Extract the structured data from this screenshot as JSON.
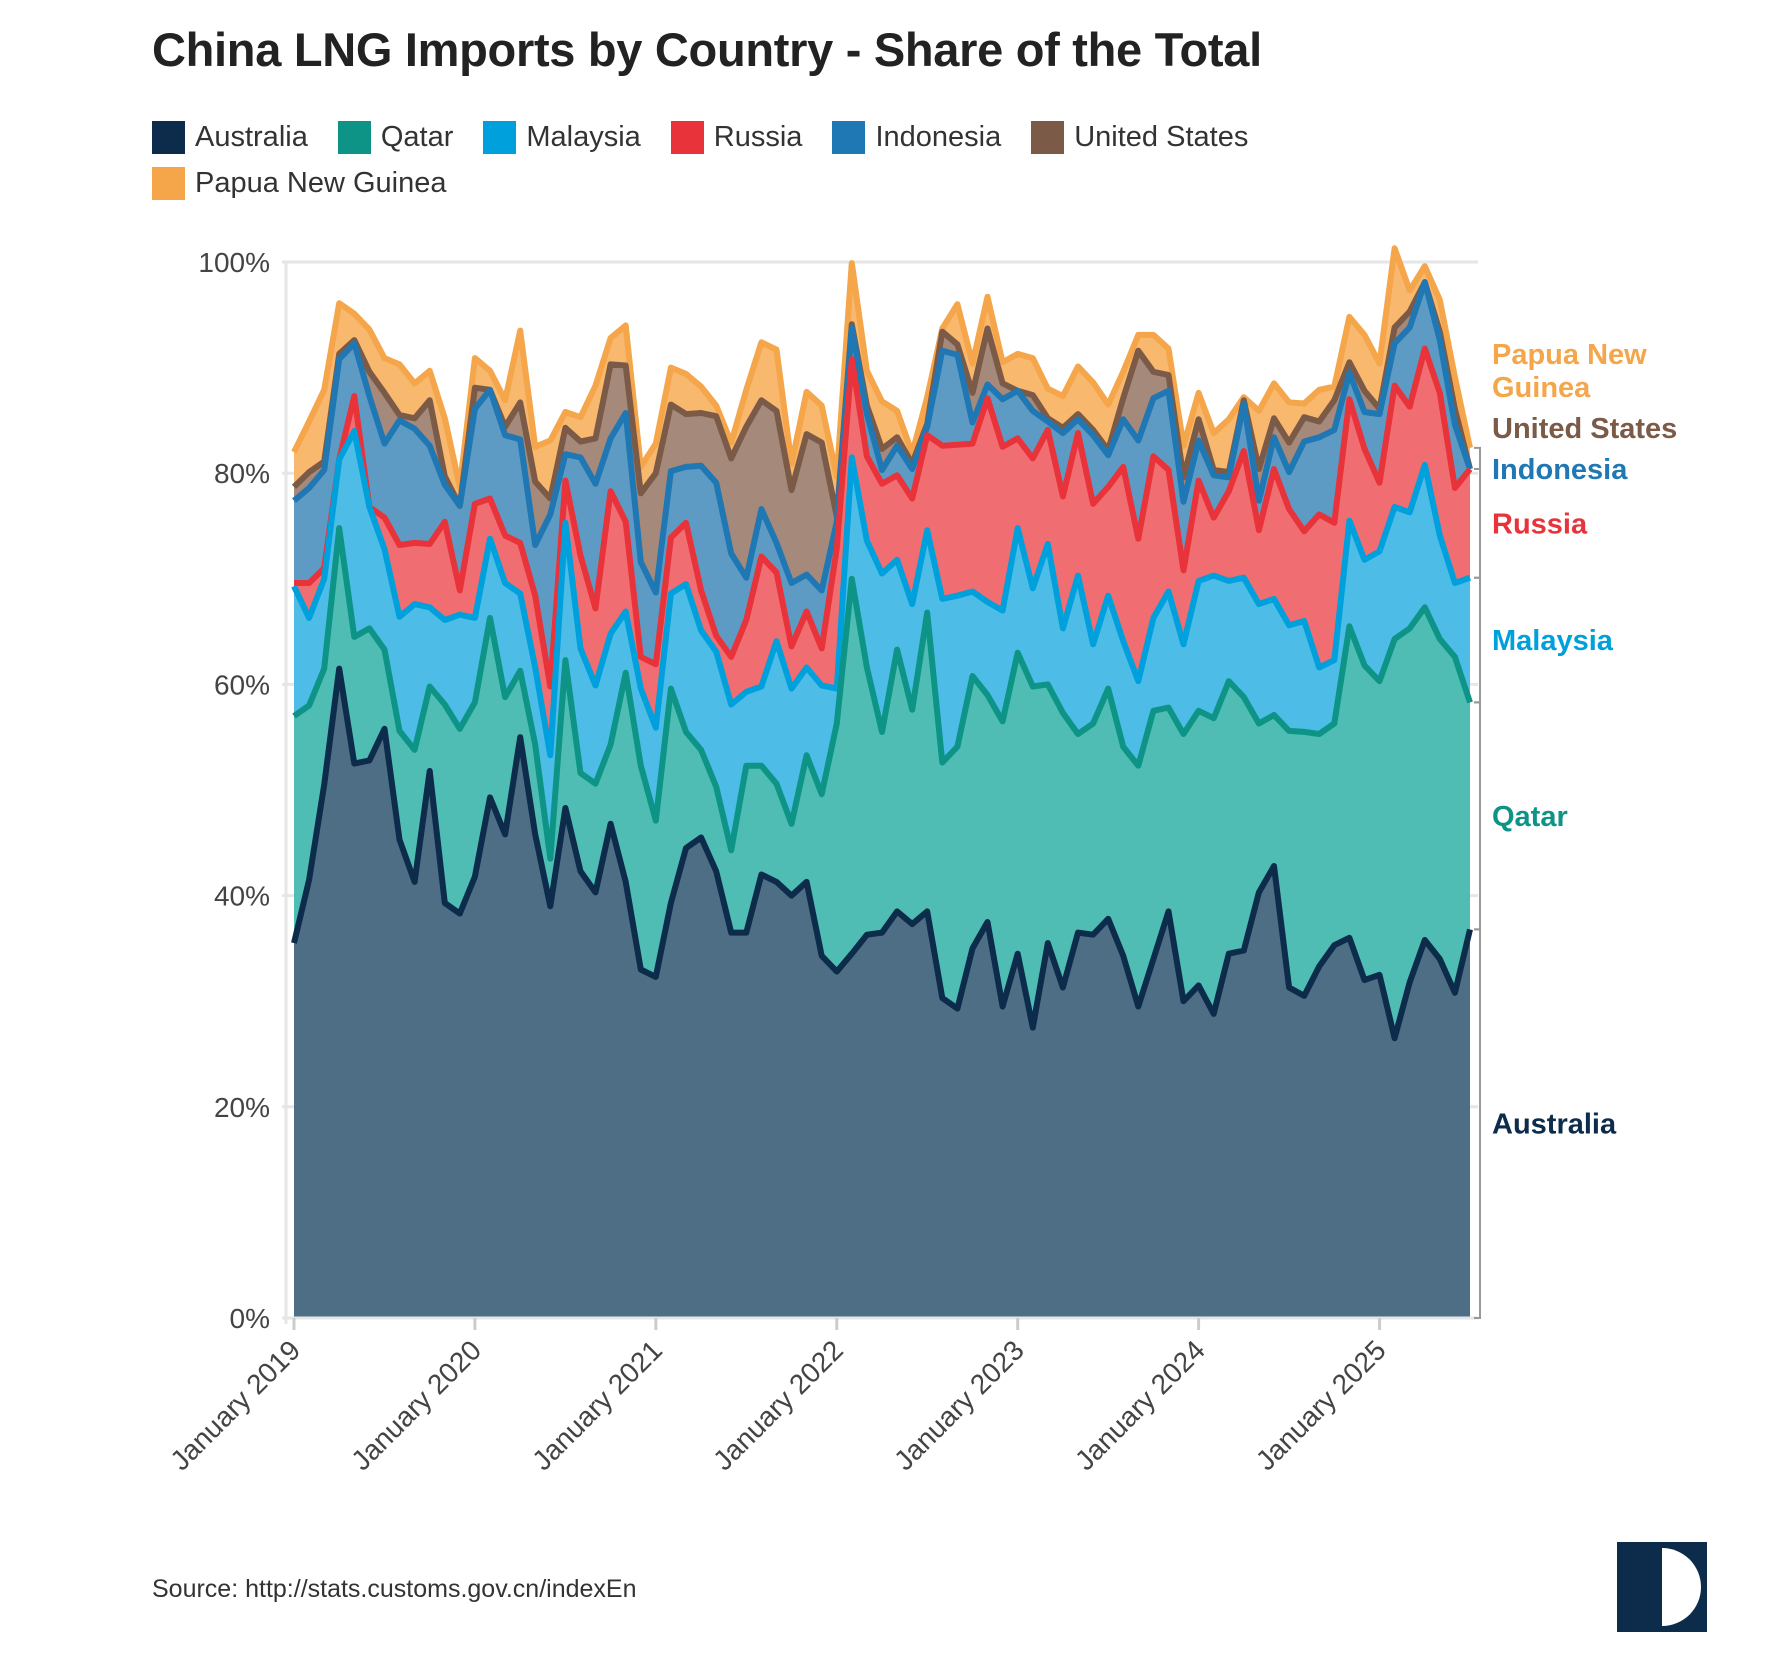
{
  "title": "China LNG Imports by Country - Share of the Total",
  "source": "Source: http://stats.customs.gov.cn/indexEn",
  "logo_icon": "half-circle-logo-icon",
  "chart_data": {
    "type": "area",
    "stacked": true,
    "title": "China LNG Imports by Country - Share of the Total",
    "xlabel": "",
    "ylabel": "",
    "ylim": [
      0,
      100
    ],
    "y_ticks": [
      0,
      20,
      40,
      60,
      80,
      100
    ],
    "y_tick_labels": [
      "0%",
      "20%",
      "40%",
      "60%",
      "80%",
      "100%"
    ],
    "x_tick_labels": [
      "January 2019",
      "January 2020",
      "January 2021",
      "January 2022",
      "January 2023",
      "January 2024",
      "January 2025"
    ],
    "x_start": "2019-01",
    "x_end": "2025-07",
    "frequency": "monthly",
    "grid": true,
    "legend_position": "top",
    "series": [
      {
        "name": "Australia",
        "color": "#0d2b4a",
        "fill": "#4d6e85",
        "end_label": "Australia",
        "values": [
          35.5,
          41.5,
          50.5,
          61.5,
          52.5,
          52.8,
          55.8,
          45.3,
          41.3,
          51.8,
          39.3,
          38.3,
          41.8,
          49.3,
          45.8,
          55.0,
          45.8,
          39.0,
          48.3,
          42.3,
          40.3,
          46.8,
          41.3,
          33.0,
          32.3,
          39.3,
          44.5,
          45.5,
          42.3,
          36.5,
          36.5,
          42.0,
          41.3,
          40.0,
          41.3,
          34.3,
          32.8,
          34.5,
          36.3,
          36.5,
          38.5,
          37.3,
          38.5,
          30.3,
          29.3,
          35.0,
          37.5,
          29.5,
          34.5,
          27.5,
          35.5,
          31.3,
          36.5,
          36.3,
          37.8,
          34.3,
          29.5,
          34.0,
          38.5,
          30.0,
          31.5,
          28.8,
          34.5,
          34.8,
          40.3,
          42.8,
          31.3,
          30.5,
          33.3,
          35.3,
          36.0,
          32.0,
          32.5,
          26.5,
          31.8,
          35.8,
          34.0,
          30.8,
          36.8
        ]
      },
      {
        "name": "Qatar",
        "color": "#0e9486",
        "fill": "#4fbdb3",
        "end_label": "Qatar",
        "values": [
          21.5,
          16.5,
          11.0,
          13.3,
          12.0,
          12.5,
          7.5,
          10.3,
          12.5,
          8.0,
          18.8,
          17.5,
          16.5,
          17.0,
          13.0,
          6.3,
          8.5,
          4.5,
          14.0,
          9.3,
          10.3,
          7.5,
          19.8,
          19.3,
          14.8,
          20.3,
          11.0,
          8.3,
          8.0,
          7.8,
          15.8,
          10.3,
          9.3,
          6.8,
          12.0,
          15.3,
          23.5,
          35.5,
          25.3,
          19.0,
          24.8,
          20.3,
          28.3,
          22.3,
          24.8,
          25.8,
          21.5,
          27.0,
          28.5,
          32.3,
          24.5,
          26.0,
          18.8,
          20.0,
          21.8,
          19.8,
          22.8,
          23.5,
          19.3,
          25.3,
          26.0,
          28.0,
          25.8,
          24.0,
          16.0,
          14.3,
          24.3,
          25.0,
          22.0,
          21.0,
          29.5,
          29.8,
          27.8,
          37.8,
          33.5,
          31.5,
          30.3,
          31.8,
          21.5
        ]
      },
      {
        "name": "Malaysia",
        "color": "#00a0dc",
        "fill": "#4dbde8",
        "end_label": "Malaysia",
        "values": [
          12.3,
          8.3,
          8.5,
          6.5,
          19.5,
          11.5,
          9.5,
          10.8,
          13.8,
          7.5,
          8.0,
          10.8,
          8.0,
          7.5,
          10.8,
          7.3,
          7.3,
          9.8,
          13.0,
          11.8,
          9.3,
          10.5,
          5.8,
          7.3,
          8.8,
          9.0,
          14.0,
          11.3,
          12.8,
          13.8,
          7.0,
          7.5,
          13.5,
          12.8,
          8.3,
          10.3,
          3.3,
          11.5,
          12.0,
          15.0,
          8.5,
          10.0,
          7.8,
          15.5,
          14.3,
          8.0,
          8.8,
          10.5,
          11.8,
          9.3,
          13.3,
          8.0,
          15.0,
          7.5,
          8.8,
          10.0,
          8.0,
          8.8,
          11.0,
          8.5,
          12.3,
          13.5,
          9.5,
          11.3,
          11.3,
          11.0,
          10.0,
          10.5,
          6.3,
          6.0,
          10.0,
          10.0,
          12.3,
          12.5,
          11.0,
          13.5,
          9.8,
          7.0,
          11.8
        ]
      },
      {
        "name": "Russia",
        "color": "#e8333a",
        "fill": "#f06e72",
        "end_label": "Russia",
        "values": [
          0.3,
          3.3,
          1.0,
          0,
          3.3,
          0,
          3.0,
          6.8,
          5.8,
          6.0,
          9.3,
          2.3,
          10.8,
          3.8,
          4.5,
          4.8,
          6.8,
          6.5,
          4.0,
          8.8,
          7.3,
          13.5,
          8.5,
          3.0,
          6.0,
          5.3,
          5.8,
          3.8,
          1.5,
          4.5,
          6.8,
          12.3,
          6.5,
          4.0,
          5.3,
          3.5,
          13.3,
          9.3,
          8.0,
          8.5,
          8.0,
          10.0,
          9.0,
          14.5,
          14.3,
          14.0,
          19.3,
          15.5,
          8.5,
          12.3,
          10.8,
          12.5,
          13.5,
          13.3,
          10.3,
          16.5,
          13.5,
          15.3,
          11.5,
          7.0,
          9.5,
          5.5,
          8.5,
          12.0,
          7.0,
          12.3,
          11.0,
          8.5,
          14.5,
          13.0,
          11.5,
          10.5,
          6.5,
          11.5,
          10.0,
          11.0,
          13.5,
          9.0,
          10.3
        ]
      },
      {
        "name": "Indonesia",
        "color": "#1f77b4",
        "fill": "#5e9bc4",
        "end_label": "Indonesia",
        "values": [
          7.8,
          9.0,
          9.3,
          9.5,
          5.0,
          10.5,
          7.0,
          11.8,
          10.8,
          9.3,
          3.5,
          8.0,
          9.0,
          10.3,
          9.5,
          9.8,
          4.8,
          16.3,
          2.5,
          9.3,
          11.8,
          5.0,
          10.3,
          9.0,
          6.8,
          6.3,
          5.3,
          11.8,
          14.5,
          9.8,
          4.0,
          4.5,
          2.8,
          6.0,
          3.5,
          5.5,
          2.5,
          3.0,
          4.0,
          1.3,
          2.8,
          2.8,
          0.8,
          9.0,
          8.5,
          2.0,
          1.3,
          4.5,
          4.5,
          4.5,
          0.8,
          6.0,
          1.3,
          6.5,
          3.0,
          4.5,
          9.3,
          5.5,
          7.5,
          6.5,
          3.8,
          4.0,
          1.3,
          4.5,
          2.8,
          3.0,
          3.5,
          8.5,
          7.3,
          8.8,
          2.5,
          3.5,
          6.5,
          4.0,
          7.5,
          6.3,
          5.0,
          6.0,
          0.0
        ]
      },
      {
        "name": "United States",
        "color": "#7b5a47",
        "fill": "#a58a7b",
        "end_label": "United States",
        "values": [
          1.3,
          1.5,
          0.8,
          0.5,
          0.3,
          2.3,
          4.8,
          0.5,
          1.0,
          4.3,
          0.8,
          0.0,
          2.0,
          0.0,
          0.8,
          3.5,
          6.0,
          1.5,
          2.5,
          1.5,
          4.3,
          7.0,
          4.5,
          6.5,
          11.3,
          6.3,
          5.0,
          5.0,
          6.3,
          9.0,
          14.3,
          10.3,
          12.5,
          8.8,
          13.3,
          14.0,
          0.5,
          0.3,
          0.8,
          2.0,
          0.8,
          0.5,
          0.3,
          1.8,
          1.0,
          2.8,
          5.3,
          1.5,
          0.0,
          1.5,
          0.3,
          0.5,
          0.5,
          0.5,
          0.5,
          2.0,
          8.5,
          2.5,
          1.5,
          2.3,
          2.0,
          0.5,
          0.5,
          0.3,
          3.0,
          1.8,
          2.8,
          2.3,
          1.5,
          2.8,
          1.0,
          2.0,
          0.5,
          1.5,
          1.5,
          0.0,
          0.8,
          1.5,
          0.0
        ]
      },
      {
        "name": "Papua New Guinea",
        "color": "#f5a54a",
        "fill": "#f8b86e",
        "end_label": "Papua New Guinea",
        "values": [
          3.3,
          4.8,
          6.8,
          4.8,
          2.5,
          4.0,
          3.3,
          4.8,
          3.3,
          2.8,
          5.5,
          1.8,
          2.8,
          1.8,
          2.5,
          6.8,
          3.3,
          5.5,
          1.5,
          2.3,
          5.0,
          2.5,
          3.8,
          2.5,
          2.8,
          3.5,
          3.8,
          2.5,
          1.0,
          1.5,
          3.5,
          5.5,
          5.8,
          2.5,
          4.0,
          3.5,
          3.8,
          5.8,
          3.3,
          4.5,
          2.5,
          1.0,
          2.5,
          0.3,
          3.8,
          2.8,
          3.0,
          2.0,
          3.5,
          3.5,
          2.8,
          3.0,
          4.5,
          4.5,
          4.3,
          2.5,
          1.5,
          3.5,
          2.5,
          3.0,
          2.5,
          3.5,
          5.0,
          0.3,
          5.5,
          3.3,
          3.8,
          1.3,
          3.0,
          1.3,
          4.3,
          5.3,
          4.3,
          7.5,
          2.0,
          1.5,
          3.0,
          3.0,
          2.0
        ]
      }
    ]
  }
}
